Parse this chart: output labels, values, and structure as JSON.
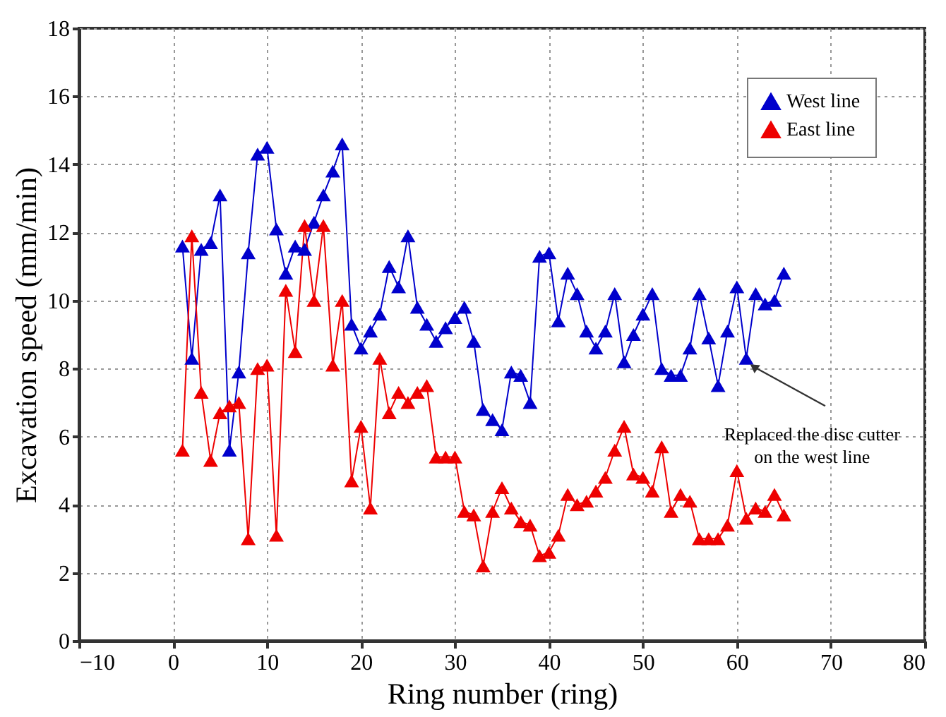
{
  "chart_data": {
    "type": "line",
    "xlabel": "Ring number (ring)",
    "ylabel": "Excavation speed (mm/min)",
    "x": [
      1,
      2,
      3,
      4,
      5,
      6,
      7,
      8,
      9,
      10,
      11,
      12,
      13,
      14,
      15,
      16,
      17,
      18,
      19,
      20,
      21,
      22,
      23,
      24,
      25,
      26,
      27,
      28,
      29,
      30,
      31,
      32,
      33,
      34,
      35,
      36,
      37,
      38,
      39,
      40,
      41,
      42,
      43,
      44,
      45,
      46,
      47,
      48,
      49,
      50,
      51,
      52,
      53,
      54,
      55,
      56,
      57,
      58,
      59,
      60,
      61,
      62,
      63,
      64,
      65
    ],
    "series": [
      {
        "name": "West line",
        "color": "#0000cc",
        "values": [
          11.6,
          8.3,
          11.5,
          11.7,
          13.1,
          5.6,
          7.9,
          11.4,
          14.3,
          14.5,
          12.1,
          10.8,
          11.6,
          11.5,
          12.3,
          13.1,
          13.8,
          14.6,
          9.3,
          8.6,
          9.1,
          9.6,
          11.0,
          10.4,
          11.9,
          9.8,
          9.3,
          8.8,
          9.2,
          9.5,
          9.8,
          8.8,
          6.8,
          6.5,
          6.2,
          7.9,
          7.8,
          7.0,
          11.3,
          11.4,
          9.4,
          10.8,
          10.2,
          9.1,
          8.6,
          9.1,
          10.2,
          8.2,
          9.0,
          9.6,
          10.2,
          8.0,
          7.8,
          7.8,
          8.6,
          10.2,
          8.9,
          7.5,
          9.1,
          10.4,
          8.3,
          10.2,
          9.9,
          10.0,
          10.8
        ]
      },
      {
        "name": "East line",
        "color": "#ee0000",
        "values": [
          5.6,
          11.9,
          7.3,
          5.3,
          6.7,
          6.9,
          7.0,
          3.0,
          8.0,
          8.1,
          3.1,
          10.3,
          8.5,
          12.2,
          10.0,
          12.2,
          8.1,
          10.0,
          4.7,
          6.3,
          3.9,
          8.3,
          6.7,
          7.3,
          7.0,
          7.3,
          7.5,
          5.4,
          5.4,
          5.4,
          3.8,
          3.7,
          2.2,
          3.8,
          4.5,
          3.9,
          3.5,
          3.4,
          2.5,
          2.6,
          3.1,
          4.3,
          4.0,
          4.1,
          4.4,
          4.8,
          5.6,
          6.3,
          4.9,
          4.8,
          4.4,
          5.7,
          3.8,
          4.3,
          4.1,
          3.0,
          3.0,
          3.0,
          3.4,
          5.0,
          3.6,
          3.9,
          3.8,
          4.3,
          3.7
        ]
      }
    ],
    "xlim": [
      -10,
      80
    ],
    "xticks": [
      -10,
      0,
      10,
      20,
      30,
      40,
      50,
      60,
      70,
      80
    ],
    "ylim": [
      0,
      18
    ],
    "yticks": [
      0,
      2,
      4,
      6,
      8,
      10,
      12,
      14,
      16,
      18
    ],
    "grid": true,
    "legend": "top right",
    "marker": "triangle",
    "line_style": "solid",
    "annotations": [
      {
        "text": "Replaced the disc cutter on the west line",
        "x": 61,
        "y": 8.3
      }
    ]
  }
}
